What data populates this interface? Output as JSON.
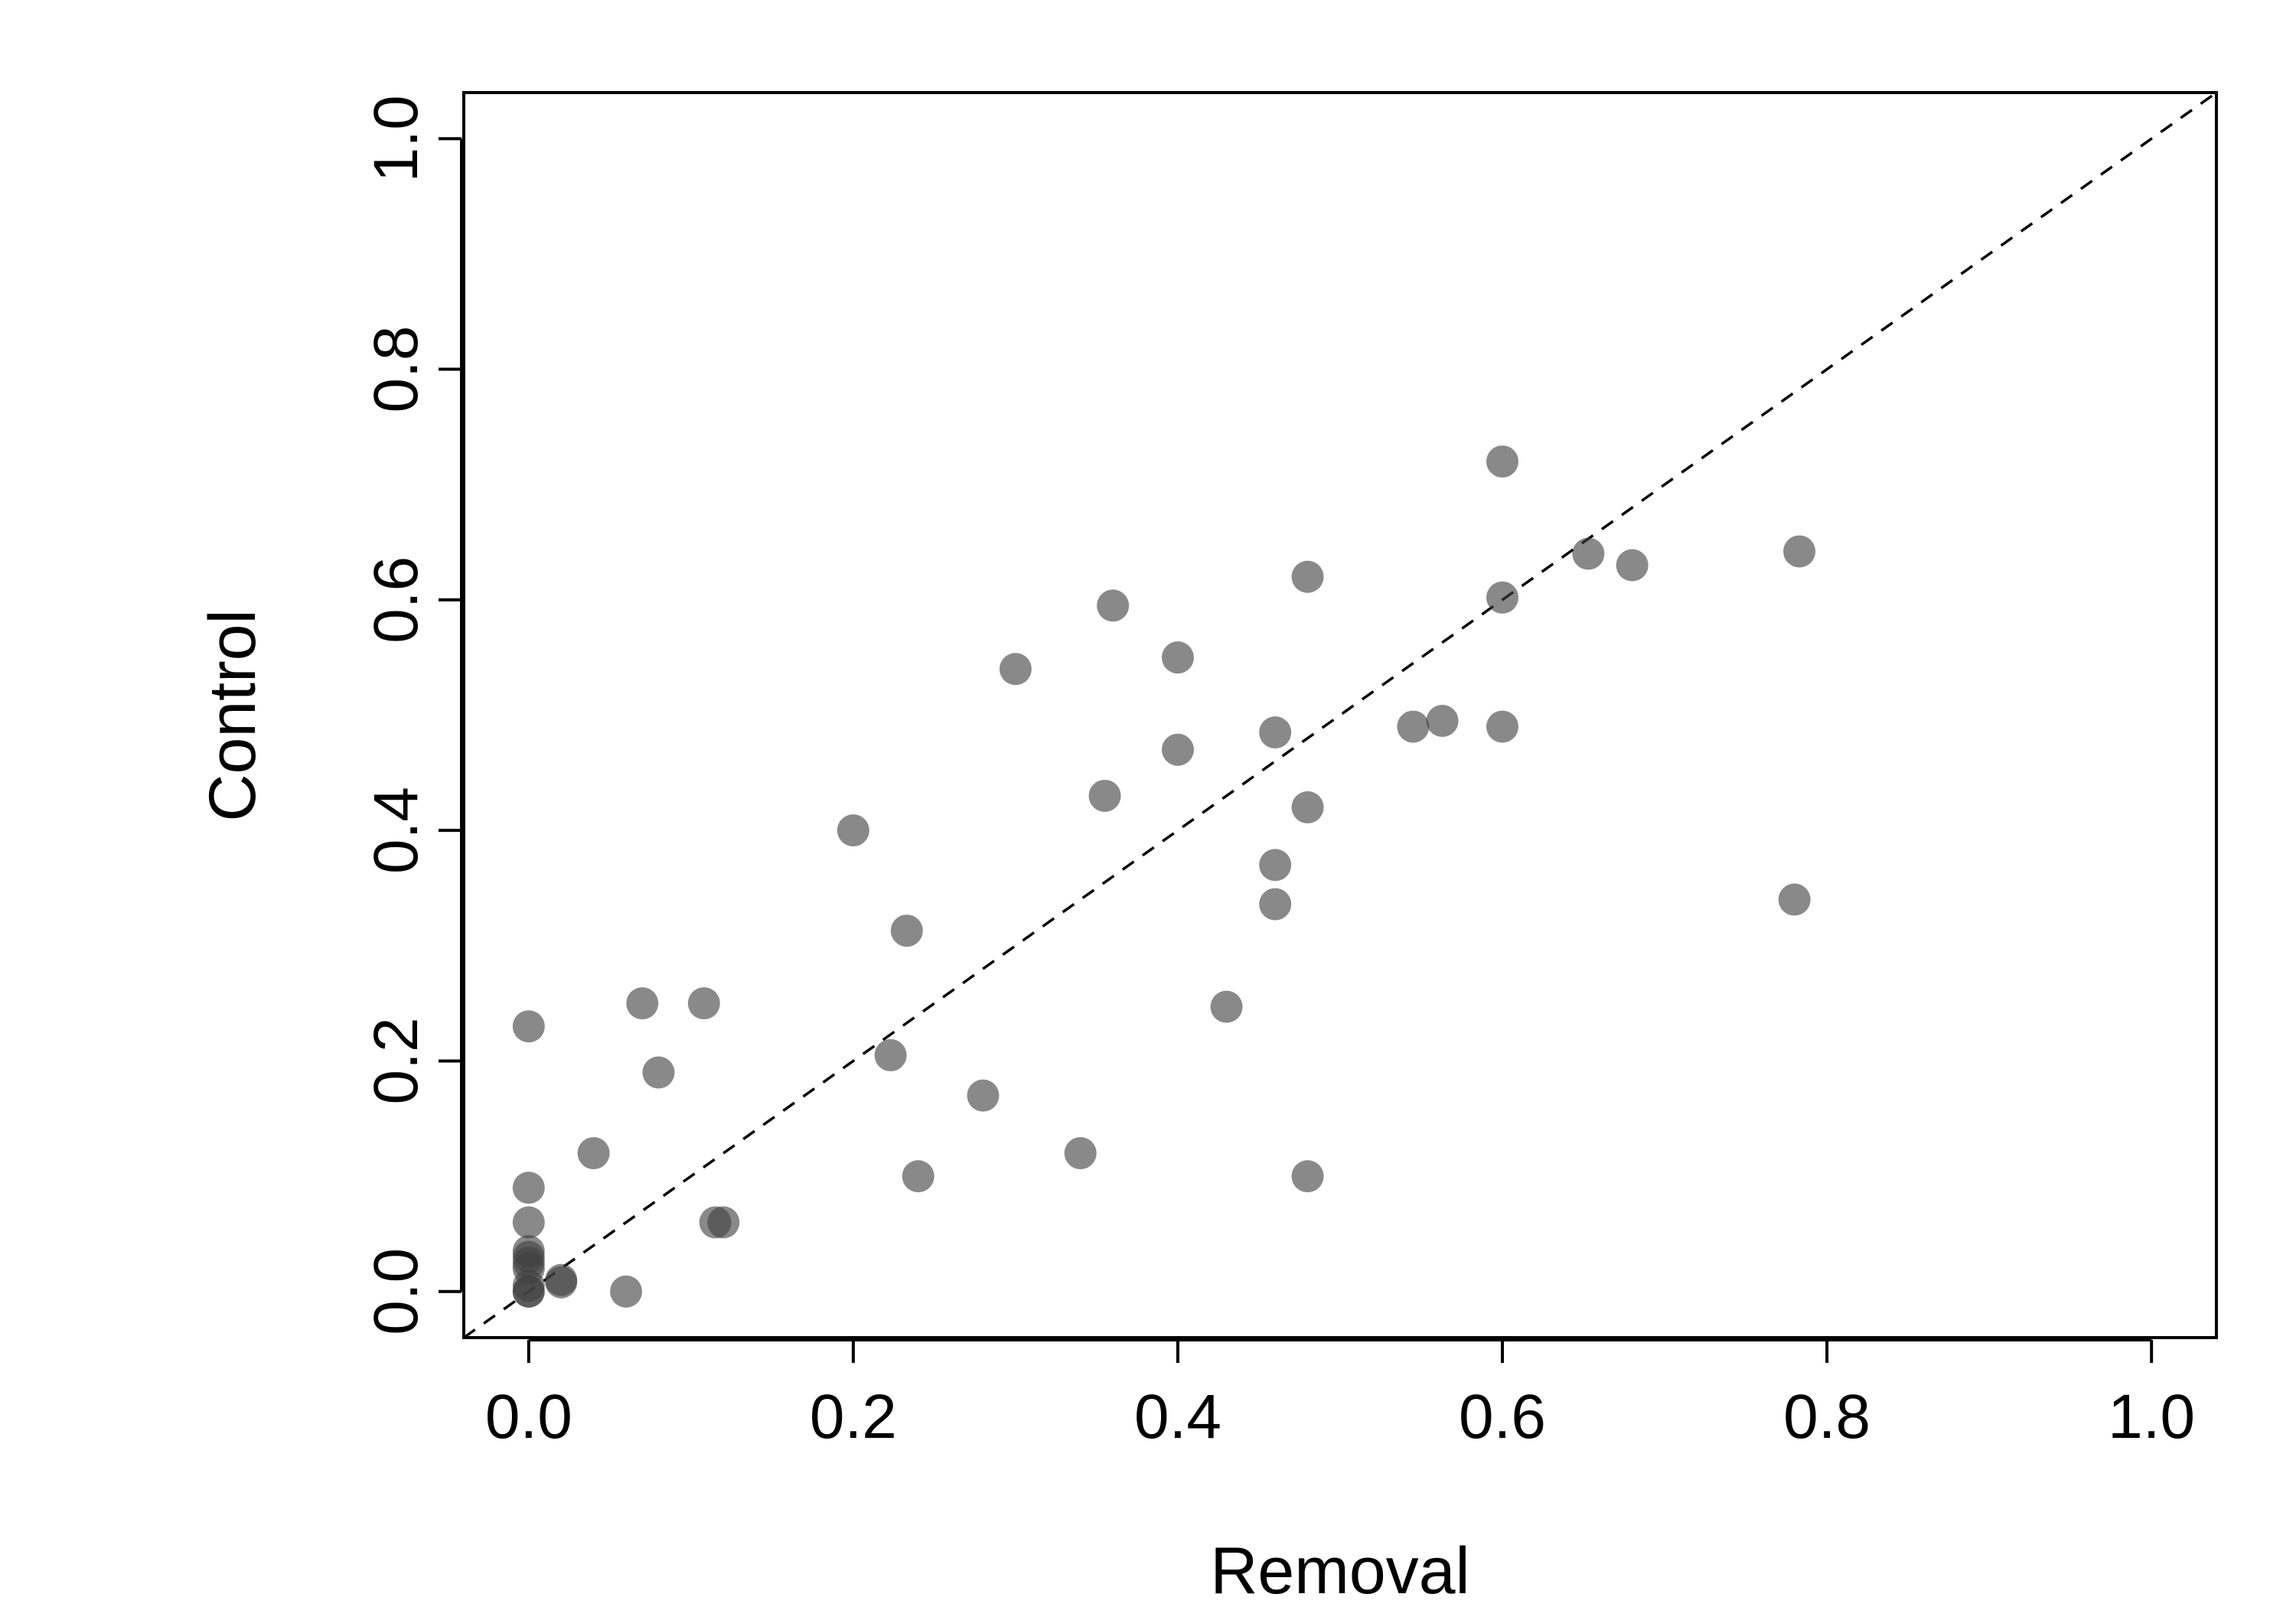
{
  "chart_data": {
    "type": "scatter",
    "title": "",
    "xlabel": "Removal",
    "ylabel": "Control",
    "xlim": [
      -0.04,
      1.04
    ],
    "ylim": [
      -0.04,
      1.04
    ],
    "x_ticks": [
      "0.0",
      "0.2",
      "0.4",
      "0.6",
      "0.8",
      "1.0"
    ],
    "y_ticks": [
      "0.0",
      "0.2",
      "0.4",
      "0.6",
      "0.8",
      "1.0"
    ],
    "grid": false,
    "reference_line": {
      "style": "dashed",
      "slope": 1,
      "intercept": 0
    },
    "point_color": "#404040",
    "point_opacity": 0.62,
    "series": [
      {
        "x": [
          0.6,
          0.783,
          0.653,
          0.68,
          0.48,
          0.6,
          0.36,
          0.3,
          0.4,
          0.46,
          0.545,
          0.563,
          0.6,
          0.4,
          0.355,
          0.48,
          0.2,
          0.46,
          0.78,
          0.46,
          0.233,
          0.07,
          0.108,
          0.43,
          0.0,
          0.223,
          0.08,
          0.28,
          0.04,
          0.34,
          0.24,
          0.48,
          0.0,
          0.0,
          0.115,
          0.12,
          0.0,
          0.0,
          0.0,
          0.0,
          0.02,
          0.02,
          0.0,
          0.0,
          0.0,
          0.06
        ],
        "y": [
          0.72,
          0.642,
          0.64,
          0.63,
          0.62,
          0.602,
          0.595,
          0.54,
          0.55,
          0.485,
          0.49,
          0.495,
          0.49,
          0.47,
          0.43,
          0.42,
          0.4,
          0.37,
          0.34,
          0.336,
          0.313,
          0.25,
          0.25,
          0.247,
          0.23,
          0.205,
          0.19,
          0.17,
          0.12,
          0.12,
          0.1,
          0.1,
          0.09,
          0.06,
          0.06,
          0.06,
          0.035,
          0.03,
          0.025,
          0.02,
          0.01,
          0.008,
          0.005,
          0.0,
          0.0,
          0.0
        ]
      }
    ]
  }
}
